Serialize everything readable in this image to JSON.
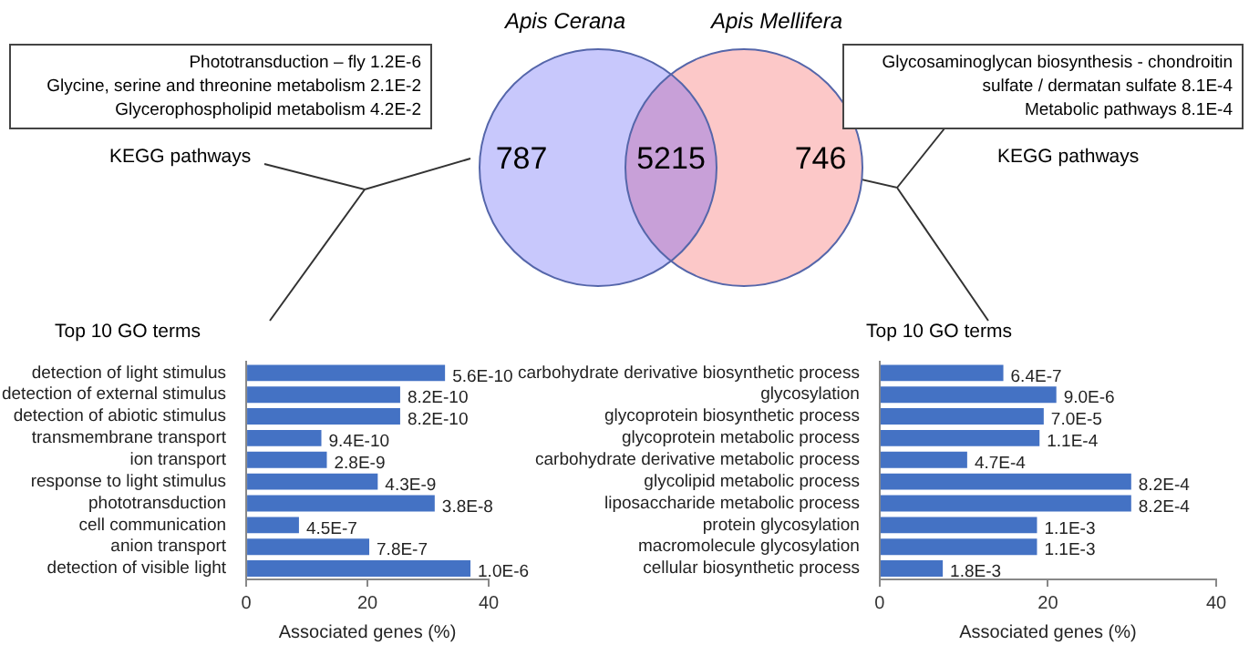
{
  "chart_data": [
    {
      "type": "other",
      "categories": [
        "Apis Cerana",
        null,
        "Apis Mellifera"
      ],
      "values": [
        787,
        5215,
        746
      ],
      "data_labels": true,
      "colors": [
        "#c8c8fc",
        "#c8a0d8",
        "#fcc8c8"
      ]
    },
    {
      "type": "bar",
      "orientation": "horizontal",
      "title": "Top 10 GO terms",
      "xlabel": "Associated genes (%)",
      "categories": [
        "detection of light stimulus",
        "detection of external stimulus",
        "detection of abiotic stimulus",
        "transmembrane transport",
        "ion transport",
        "response to light stimulus",
        "phototransduction",
        "cell communication",
        "anion transport",
        "detection of visible light"
      ],
      "values": [
        32.8,
        25.4,
        25.4,
        12.4,
        13.3,
        21.7,
        31.1,
        8.7,
        20.3,
        37.0
      ],
      "color": "#4472c4",
      "xlim": [
        0,
        40
      ],
      "xticks": [
        0,
        20,
        40
      ],
      "grid": false,
      "legend": false,
      "annotations": [
        "KEGG pathways",
        "Phototransduction – fly 1.2E-6",
        "Glycine, serine and threonine metabolism 2.1E-2",
        "Glycerophospholipid metabolism 4.2E-2",
        {
          "text": "5.6E-10",
          "x": 32.8,
          "y": "detection of light stimulus"
        },
        {
          "text": "8.2E-10",
          "x": 25.4,
          "y": "detection of external stimulus"
        },
        {
          "text": "8.2E-10",
          "x": 25.4,
          "y": "detection of abiotic stimulus"
        },
        {
          "text": "9.4E-10",
          "x": 12.4,
          "y": "transmembrane transport"
        },
        {
          "text": "2.8E-9",
          "x": 13.3,
          "y": "ion transport"
        },
        {
          "text": "4.3E-9",
          "x": 21.7,
          "y": "response to light stimulus"
        },
        {
          "text": "3.8E-8",
          "x": 31.1,
          "y": "phototransduction"
        },
        {
          "text": "4.5E-7",
          "x": 8.7,
          "y": "cell communication"
        },
        {
          "text": "7.8E-7",
          "x": 20.3,
          "y": "anion transport"
        },
        {
          "text": "1.0E-6",
          "x": 37.0,
          "y": "detection of visible light"
        }
      ]
    },
    {
      "type": "bar",
      "orientation": "horizontal",
      "title": "Top 10 GO terms",
      "xlabel": "Associated genes (%)",
      "categories": [
        "carbohydrate derivative biosynthetic process",
        "glycosylation",
        "glycoprotein biosynthetic process",
        "glycoprotein metabolic process",
        "carbohydrate derivative metabolic process",
        "glycolipid metabolic process",
        "liposaccharide metabolic process",
        "protein glycosylation",
        "macromolecule glycosylation",
        "cellular biosynthetic process"
      ],
      "values": [
        14.7,
        21.0,
        19.5,
        19.0,
        10.4,
        29.9,
        29.9,
        18.7,
        18.7,
        7.5
      ],
      "color": "#4472c4",
      "xlim": [
        0,
        40
      ],
      "xticks": [
        0,
        20,
        40
      ],
      "grid": false,
      "legend": false,
      "annotations": [
        "KEGG pathways",
        "Glycosaminoglycan biosynthesis - chondroitin sulfate / dermatan sulfate 8.1E-4",
        "Metabolic pathways 8.1E-4",
        {
          "text": "6.4E-7",
          "x": 14.7,
          "y": "carbohydrate derivative biosynthetic process"
        },
        {
          "text": "9.0E-6",
          "x": 21.0,
          "y": "glycosylation"
        },
        {
          "text": "7.0E-5",
          "x": 19.5,
          "y": "glycoprotein biosynthetic process"
        },
        {
          "text": "1.1E-4",
          "x": 19.0,
          "y": "glycoprotein metabolic process"
        },
        {
          "text": "4.7E-4",
          "x": 10.4,
          "y": "carbohydrate derivative metabolic process"
        },
        {
          "text": "8.2E-4",
          "x": 29.9,
          "y": "glycolipid metabolic process"
        },
        {
          "text": "8.2E-4",
          "x": 29.9,
          "y": "liposaccharide metabolic process"
        },
        {
          "text": "1.1E-3",
          "x": 18.7,
          "y": "protein glycosylation"
        },
        {
          "text": "1.1E-3",
          "x": 18.7,
          "y": "macromolecule glycosylation"
        },
        {
          "text": "1.8E-3",
          "x": 7.5,
          "y": "cellular biosynthetic process"
        }
      ]
    }
  ]
}
